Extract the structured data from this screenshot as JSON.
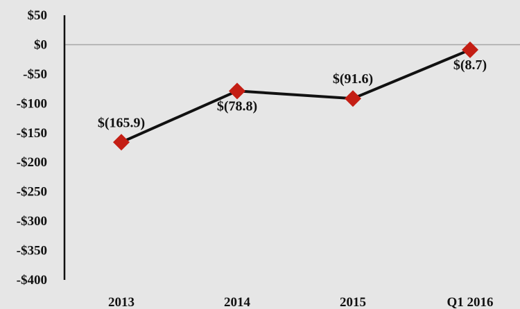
{
  "chart_data": {
    "type": "line",
    "categories": [
      "2013",
      "2014",
      "2015",
      "Q1 2016"
    ],
    "series": [
      {
        "values": [
          -165.9,
          -78.8,
          -91.6,
          -8.7
        ],
        "data_labels": [
          "$(165.9)",
          "$(78.8)",
          "$(91.6)",
          "$(8.7)"
        ]
      }
    ],
    "y_ticks": [
      50,
      0,
      -50,
      -100,
      -150,
      -200,
      -250,
      -300,
      -350,
      -400
    ],
    "y_tick_labels": [
      "$50",
      "$0",
      "-$50",
      "-$100",
      "-$150",
      "-$200",
      "-$250",
      "-$300",
      "-$350",
      "-$400"
    ],
    "ylim": [
      -400,
      50
    ],
    "grid": false,
    "legend": "none",
    "title": "",
    "xlabel": "",
    "ylabel": "",
    "colors": {
      "background": "#e6e6e6",
      "line": "#111111",
      "marker": "#c41e14",
      "zero_line": "#a6a6a6",
      "axis": "#111111"
    }
  }
}
